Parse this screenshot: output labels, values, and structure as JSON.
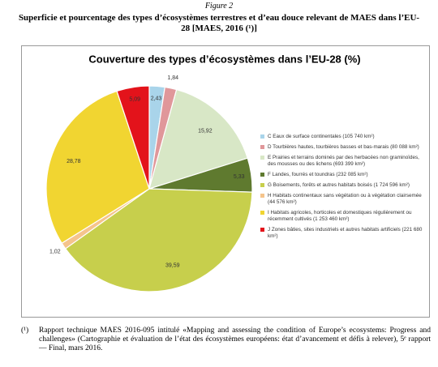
{
  "figure_label": "Figure 2",
  "caption": "Superficie et pourcentage des types d’écosystèmes terrestres et d’eau douce relevant de MAES dans l’EU-28 [MAES, 2016 (¹)]",
  "footnote": {
    "marker": "(¹)",
    "text": "Rapport technique MAES 2016-095 intitulé «Mapping and assessing the condition of Europe’s ecosystems: Progress and challenges» (Cartographie et évaluation de l’état des écosystèmes européens: état d’avancement et défis à relever), 5ᵉ rapport — Final, mars 2016."
  },
  "chart_data": {
    "type": "pie",
    "title": "Couverture des types d’écosystèmes dans l’EU-28 (%)",
    "categories": [
      "C Eaux de surface continentales (105 740 km²)",
      "D Tourbières hautes, tourbières basses et bas-marais (80 088 km²)",
      "E Prairies et terrains dominés par des herbacées non graminoïdes, des mousses ou des lichens (693 399 km²)",
      "F Landes, fourrés et toundras (232 085 km²)",
      "G Boisements, forêts et autres habitats boisés (1 724 596 km²)",
      "H Habitats continentaux sans végétation ou à végétation clairsemée (44 576 km²)",
      "I Habitats agricoles, horticoles et domestiques régulièrement ou récemment cultivés (1 253 460 km²)",
      "J Zones bâties, sites industriels et autres habitats artificiels (221 680 km²)"
    ],
    "values": [
      2.43,
      1.84,
      15.92,
      5.33,
      39.59,
      1.02,
      28.78,
      5.09
    ],
    "value_labels": [
      "2,43",
      "1,84",
      "15,92",
      "5,33",
      "39,59",
      "1,02",
      "28,78",
      "5,09"
    ],
    "colors": [
      "#a9d4ea",
      "#e0979a",
      "#d8e7c6",
      "#5f7a2f",
      "#c7cf4c",
      "#f5c48c",
      "#f1d531",
      "#e3131b"
    ]
  }
}
